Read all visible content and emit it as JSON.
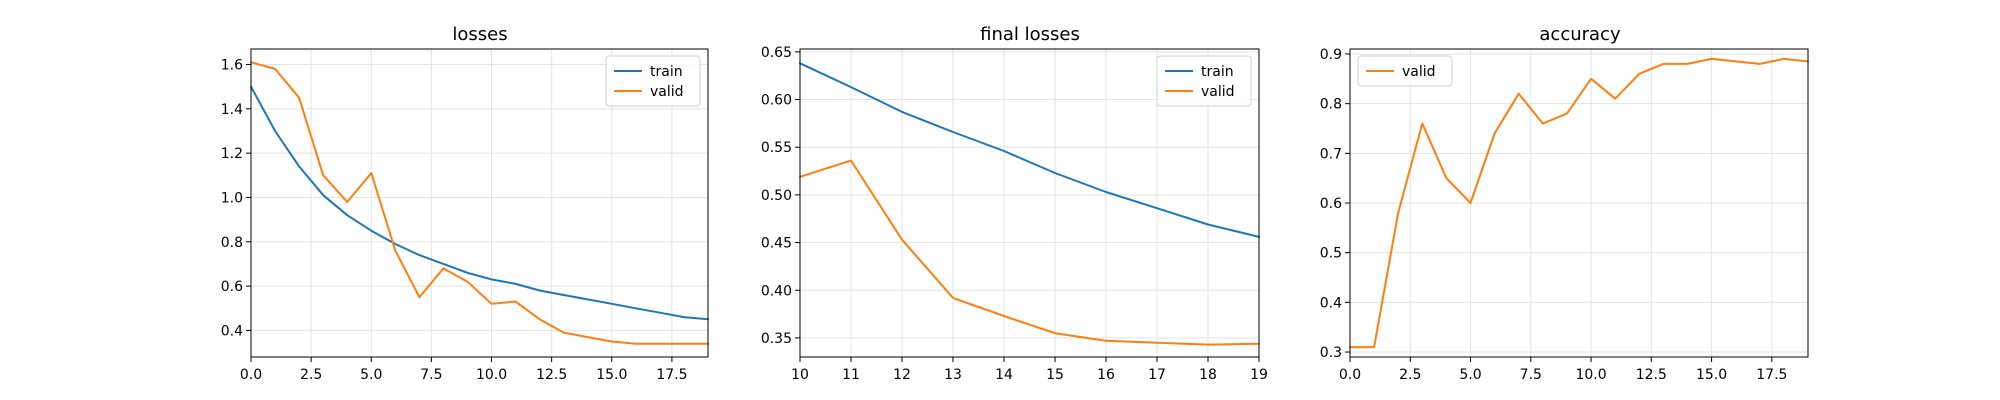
{
  "chart_data": [
    {
      "type": "line",
      "title": "losses",
      "xlabel": "",
      "ylabel": "",
      "xlim": [
        0,
        19
      ],
      "ylim": [
        0.28,
        1.67
      ],
      "xticks": [
        0,
        2.5,
        5,
        7.5,
        10,
        12.5,
        15,
        17.5
      ],
      "xtick_labels": [
        "0.0",
        "2.5",
        "5.0",
        "7.5",
        "10.0",
        "12.5",
        "15.0",
        "17.5"
      ],
      "yticks": [
        0.4,
        0.6,
        0.8,
        1.0,
        1.2,
        1.4,
        1.6
      ],
      "ytick_labels": [
        "0.4",
        "0.6",
        "0.8",
        "1.0",
        "1.2",
        "1.4",
        "1.6"
      ],
      "grid": true,
      "legend_position": "top-right",
      "series": [
        {
          "name": "train",
          "color": "#1f77b4",
          "x": [
            0,
            1,
            2,
            3,
            4,
            5,
            6,
            7,
            8,
            9,
            10,
            11,
            12,
            13,
            14,
            15,
            16,
            17,
            18,
            19
          ],
          "y": [
            1.5,
            1.3,
            1.14,
            1.01,
            0.92,
            0.85,
            0.79,
            0.74,
            0.7,
            0.66,
            0.63,
            0.61,
            0.58,
            0.56,
            0.54,
            0.52,
            0.5,
            0.48,
            0.46,
            0.45
          ]
        },
        {
          "name": "valid",
          "color": "#ff7f0e",
          "x": [
            0,
            1,
            2,
            3,
            4,
            5,
            6,
            7,
            8,
            9,
            10,
            11,
            12,
            13,
            14,
            15,
            16,
            17,
            18,
            19
          ],
          "y": [
            1.61,
            1.58,
            1.45,
            1.1,
            0.98,
            1.11,
            0.76,
            0.55,
            0.68,
            0.62,
            0.52,
            0.53,
            0.45,
            0.39,
            0.37,
            0.35,
            0.34,
            0.34,
            0.34,
            0.34
          ]
        }
      ]
    },
    {
      "type": "line",
      "title": "final losses",
      "xlabel": "",
      "ylabel": "",
      "xlim": [
        10,
        19
      ],
      "ylim": [
        0.33,
        0.653
      ],
      "xticks": [
        10,
        11,
        12,
        13,
        14,
        15,
        16,
        17,
        18,
        19
      ],
      "xtick_labels": [
        "10",
        "11",
        "12",
        "13",
        "14",
        "15",
        "16",
        "17",
        "18",
        "19"
      ],
      "yticks": [
        0.35,
        0.4,
        0.45,
        0.5,
        0.55,
        0.6,
        0.65
      ],
      "ytick_labels": [
        "0.35",
        "0.40",
        "0.45",
        "0.50",
        "0.55",
        "0.60",
        "0.65"
      ],
      "grid": true,
      "legend_position": "top-right",
      "series": [
        {
          "name": "train",
          "color": "#1f77b4",
          "x": [
            10,
            11,
            12,
            13,
            14,
            15,
            16,
            17,
            18,
            19
          ],
          "y": [
            0.638,
            0.613,
            0.587,
            0.566,
            0.546,
            0.523,
            0.503,
            0.486,
            0.469,
            0.456
          ]
        },
        {
          "name": "valid",
          "color": "#ff7f0e",
          "x": [
            10,
            11,
            12,
            13,
            14,
            15,
            16,
            17,
            18,
            19
          ],
          "y": [
            0.519,
            0.536,
            0.453,
            0.392,
            0.373,
            0.355,
            0.347,
            0.345,
            0.343,
            0.344
          ]
        }
      ]
    },
    {
      "type": "line",
      "title": "accuracy",
      "xlabel": "",
      "ylabel": "",
      "xlim": [
        0,
        19
      ],
      "ylim": [
        0.29,
        0.91
      ],
      "xticks": [
        0,
        2.5,
        5,
        7.5,
        10,
        12.5,
        15,
        17.5
      ],
      "xtick_labels": [
        "0.0",
        "2.5",
        "5.0",
        "7.5",
        "10.0",
        "12.5",
        "15.0",
        "17.5"
      ],
      "yticks": [
        0.3,
        0.4,
        0.5,
        0.6,
        0.7,
        0.8,
        0.9
      ],
      "ytick_labels": [
        "0.3",
        "0.4",
        "0.5",
        "0.6",
        "0.7",
        "0.8",
        "0.9"
      ],
      "grid": true,
      "legend_position": "top-left",
      "series": [
        {
          "name": "valid",
          "color": "#ff7f0e",
          "x": [
            0,
            1,
            2,
            3,
            4,
            5,
            6,
            7,
            8,
            9,
            10,
            11,
            12,
            13,
            14,
            15,
            16,
            17,
            18,
            19
          ],
          "y": [
            0.31,
            0.31,
            0.58,
            0.76,
            0.65,
            0.6,
            0.74,
            0.82,
            0.76,
            0.78,
            0.85,
            0.81,
            0.86,
            0.88,
            0.88,
            0.89,
            0.885,
            0.88,
            0.89,
            0.885
          ]
        }
      ]
    }
  ]
}
